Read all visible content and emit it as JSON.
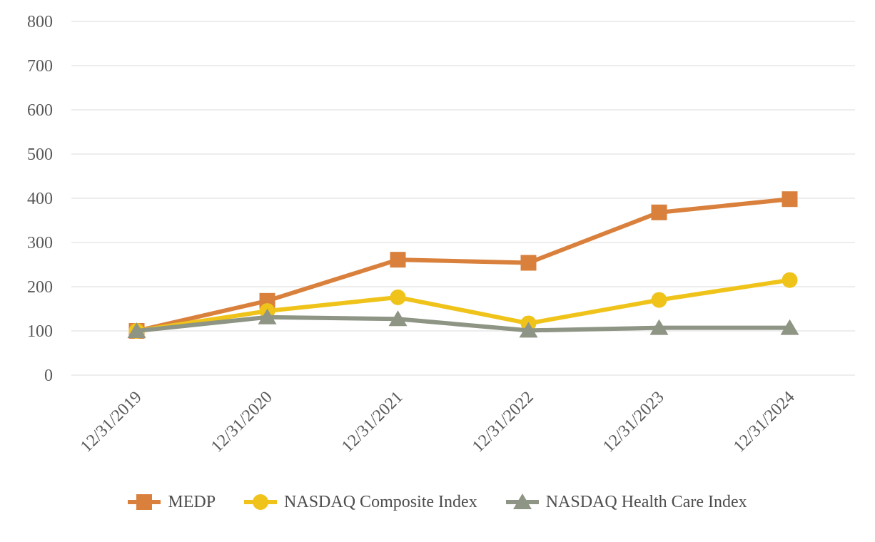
{
  "chart_data": {
    "type": "line",
    "title": "",
    "xlabel": "",
    "ylabel": "",
    "categories": [
      "12/31/2019",
      "12/31/2020",
      "12/31/2021",
      "12/31/2022",
      "12/31/2023",
      "12/31/2024"
    ],
    "series": [
      {
        "name": "MEDP",
        "marker": "square",
        "color": "#D9803C",
        "values": [
          100,
          168,
          261,
          254,
          368,
          398
        ]
      },
      {
        "name": "NASDAQ Composite Index",
        "marker": "circle",
        "color": "#EFC319",
        "values": [
          100,
          145,
          176,
          117,
          170,
          215
        ]
      },
      {
        "name": "NASDAQ Health Care Index",
        "marker": "triangle",
        "color": "#8E9584",
        "values": [
          100,
          131,
          127,
          101,
          107,
          107
        ]
      }
    ],
    "ylim": [
      0,
      800
    ],
    "yticks": [
      0,
      100,
      200,
      300,
      400,
      500,
      600,
      700,
      800
    ],
    "grid": true,
    "legend_position": "bottom",
    "colors": {
      "background": "#FFFFFF",
      "gridline": "#E7E7E7",
      "axis_tick_label": "#595959",
      "legend_text": "#4D4D4D"
    }
  }
}
